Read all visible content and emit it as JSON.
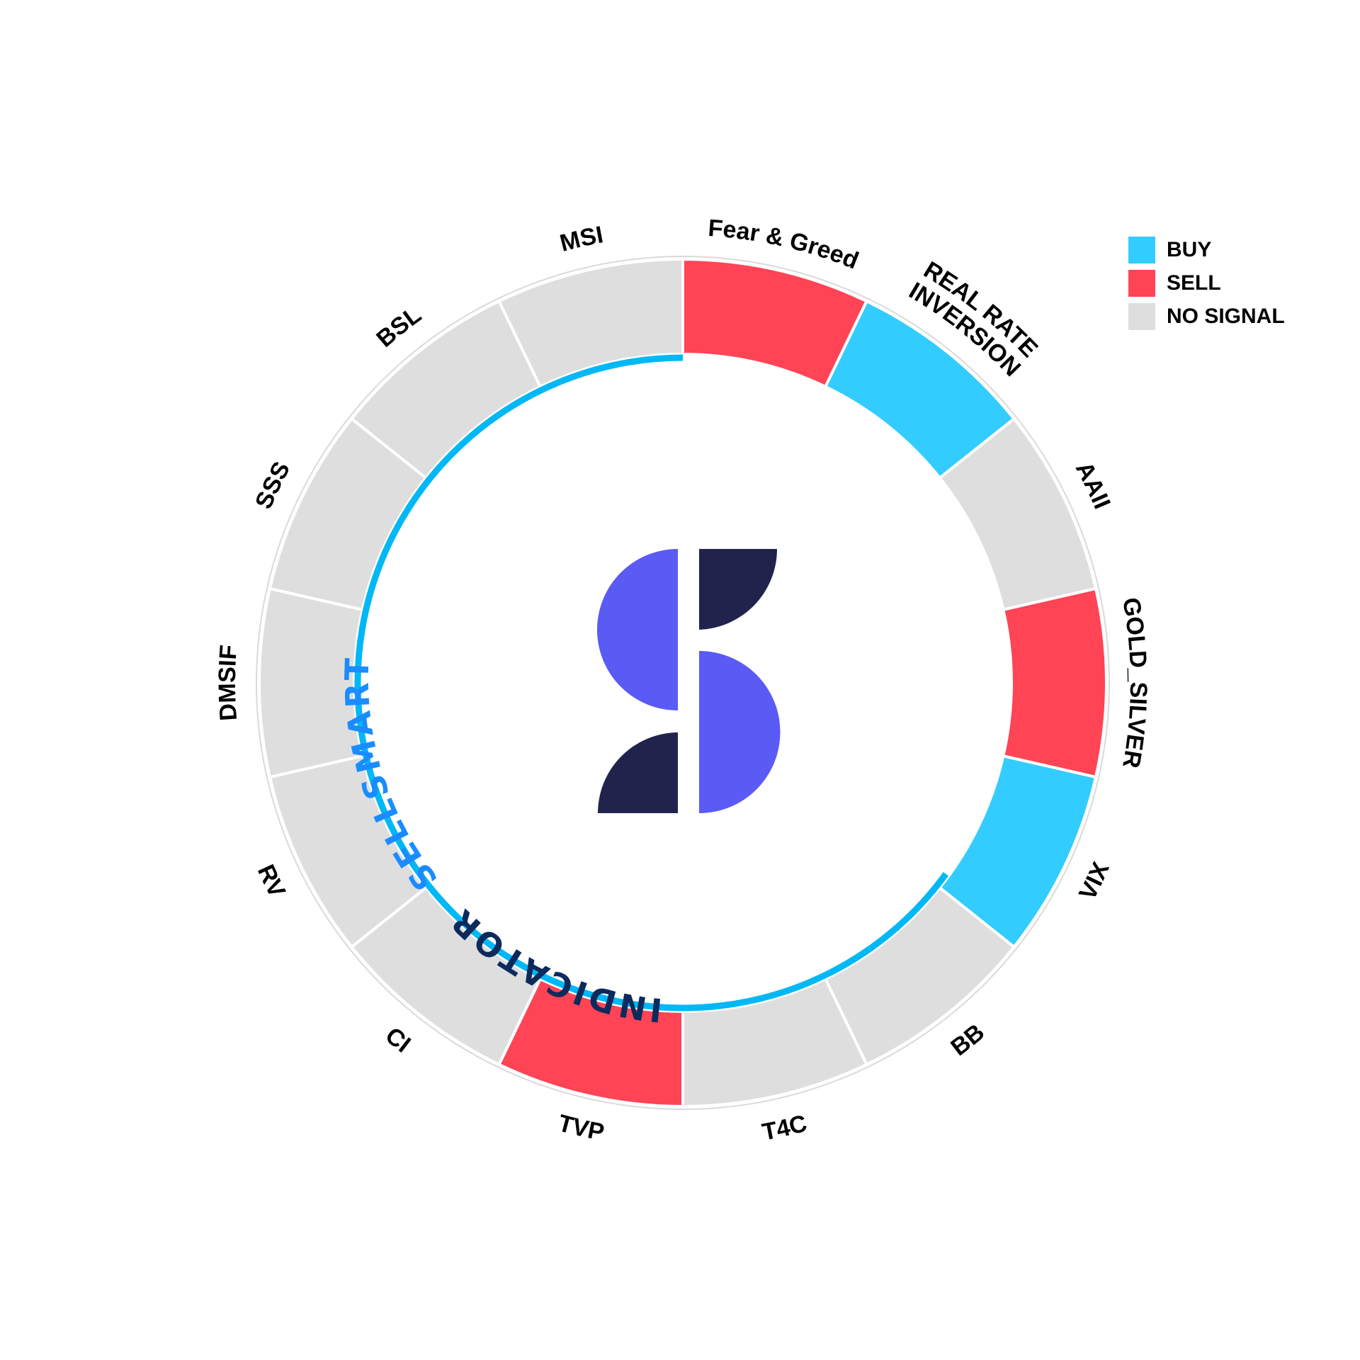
{
  "chart_data": {
    "type": "radial-signal-ring",
    "segments": [
      {
        "label": "Fear & Greed",
        "signal": "SELL"
      },
      {
        "label": "REAL RATE\nINVERSION",
        "signal": "BUY"
      },
      {
        "label": "AAII",
        "signal": "NO SIGNAL"
      },
      {
        "label": "GOLD_SILVER",
        "signal": "SELL"
      },
      {
        "label": "VIX",
        "signal": "BUY"
      },
      {
        "label": "BB",
        "signal": "NO SIGNAL"
      },
      {
        "label": "T4C",
        "signal": "NO SIGNAL"
      },
      {
        "label": "TVP",
        "signal": "SELL"
      },
      {
        "label": "CI",
        "signal": "NO SIGNAL"
      },
      {
        "label": "RV",
        "signal": "NO SIGNAL"
      },
      {
        "label": "DMSIF",
        "signal": "NO SIGNAL"
      },
      {
        "label": "SSS",
        "signal": "NO SIGNAL"
      },
      {
        "label": "BSL",
        "signal": "NO SIGNAL"
      },
      {
        "label": "MSI",
        "signal": "NO SIGNAL"
      }
    ],
    "legend": [
      {
        "label": "BUY",
        "color": "#33ccff"
      },
      {
        "label": "SELL",
        "color": "#ff4455"
      },
      {
        "label": "NO SIGNAL",
        "color": "#dedede"
      }
    ],
    "legend_position": "top-right",
    "progress_arc": {
      "fraction": 0.65,
      "color": "#00b8f5"
    },
    "brand": {
      "word1": "SELLSMART",
      "word2": "INDICATOR",
      "word1_color": "#1a8cff",
      "word2_color": "#0d2a5c",
      "logo_colors": {
        "light": "#5a5af5",
        "dark": "#22234d"
      }
    }
  }
}
